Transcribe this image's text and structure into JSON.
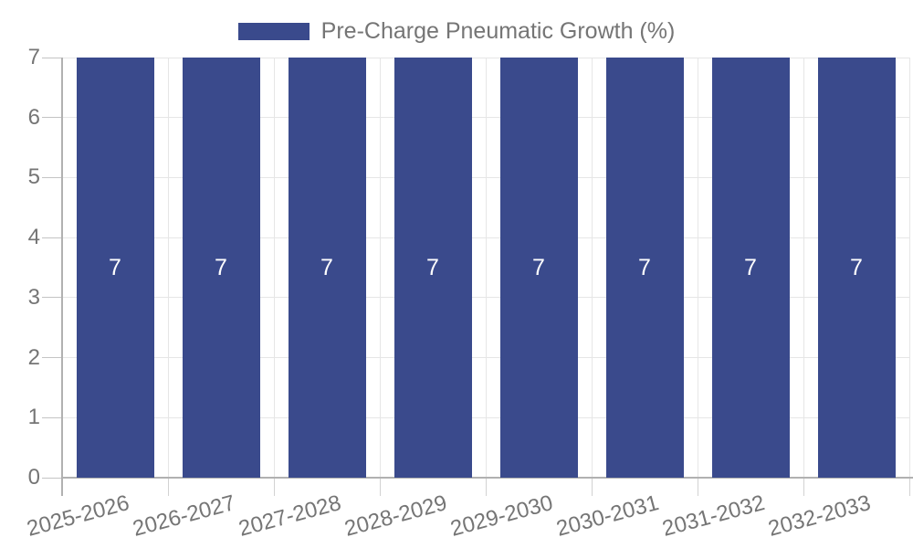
{
  "legend": {
    "label": "Pre-Charge Pneumatic Growth (%)"
  },
  "chart_data": {
    "type": "bar",
    "title": "Pre-Charge Pneumatic Growth (%)",
    "categories": [
      "2025-2026",
      "2026-2027",
      "2027-2028",
      "2028-2029",
      "2029-2030",
      "2030-2031",
      "2031-2032",
      "2032-2033"
    ],
    "values": [
      7,
      7,
      7,
      7,
      7,
      7,
      7,
      7
    ],
    "bar_labels": [
      "7",
      "7",
      "7",
      "7",
      "7",
      "7",
      "7",
      "7"
    ],
    "xlabel": "",
    "ylabel": "",
    "ylim": [
      0,
      7
    ],
    "yticks": [
      0,
      1,
      2,
      3,
      4,
      5,
      6,
      7
    ],
    "grid": true,
    "legend_position": "top",
    "x_tick_rotation_deg": -15,
    "colors": {
      "bar": "#3a4a8c",
      "bar_label": "#ffffff",
      "tick_text": "#757575",
      "grid": "#e6e6e6",
      "axis": "#b1b1b1"
    }
  }
}
